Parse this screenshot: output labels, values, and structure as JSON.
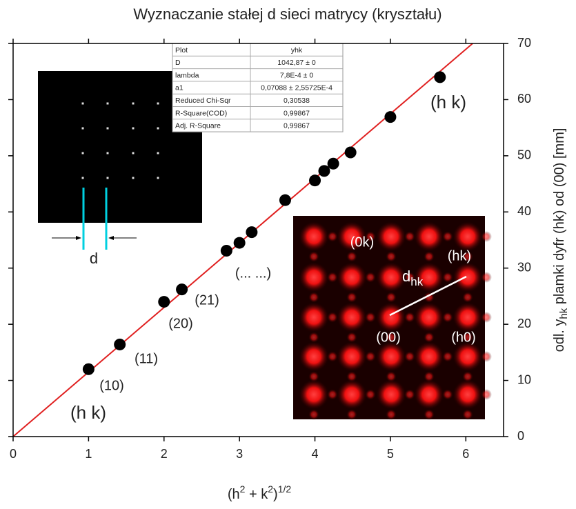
{
  "chart_data": {
    "type": "scatter",
    "title": "Wyznaczanie stałej d sieci matrycy (kryształu)",
    "x_label": {
      "open": "(h",
      "sup1": "2",
      "mid": " + k",
      "sup2": "2",
      "close": ")",
      "sup3": "1/2"
    },
    "y_label": {
      "main": "odl. y",
      "sub": "hk",
      "rest": " plamki dyfr (hk) od (00) [mm]"
    },
    "x": [
      1,
      1.414,
      2,
      2.236,
      2.828,
      3,
      3.162,
      3.606,
      4,
      4.123,
      4.243,
      4.472,
      5,
      5.657
    ],
    "values": [
      12,
      16.4,
      24,
      26.2,
      33.1,
      34.5,
      36.4,
      42.1,
      45.6,
      47.3,
      48.6,
      50.6,
      56.9,
      64
    ],
    "color": "#000000",
    "fit": {
      "x": [
        0,
        6.09
      ],
      "values": [
        0,
        70
      ],
      "color": "#e02020"
    },
    "xlim": [
      0,
      6.5
    ],
    "ylim": [
      0,
      70
    ],
    "xticks": [
      0,
      1,
      2,
      3,
      4,
      5,
      6
    ],
    "yticks": [
      0,
      10,
      20,
      30,
      40,
      50,
      60,
      70
    ],
    "y_axis_side": "right",
    "annotations": [
      "(h k)",
      "(h k)",
      "(10)",
      "(11)",
      "(20)",
      "(21)",
      "(... ...)"
    ],
    "fit_table": [
      [
        "Plot",
        "yhk"
      ],
      [
        "D",
        "1042,87 ± 0"
      ],
      [
        "lambda",
        "7,8E-4 ± 0"
      ],
      [
        "a1",
        "0,07088 ± 2,55725E-4"
      ],
      [
        "Reduced Chi-Sqr",
        "0,30538"
      ],
      [
        "R-Square(COD)",
        "0,99867"
      ],
      [
        "Adj. R-Square",
        "0,99867"
      ]
    ],
    "insets": {
      "real_label": "d",
      "pattern_labels": [
        "(0k)",
        "(hk)",
        "(00)",
        "(h0)"
      ],
      "d_main": "d",
      "d_sub": "hk"
    }
  }
}
